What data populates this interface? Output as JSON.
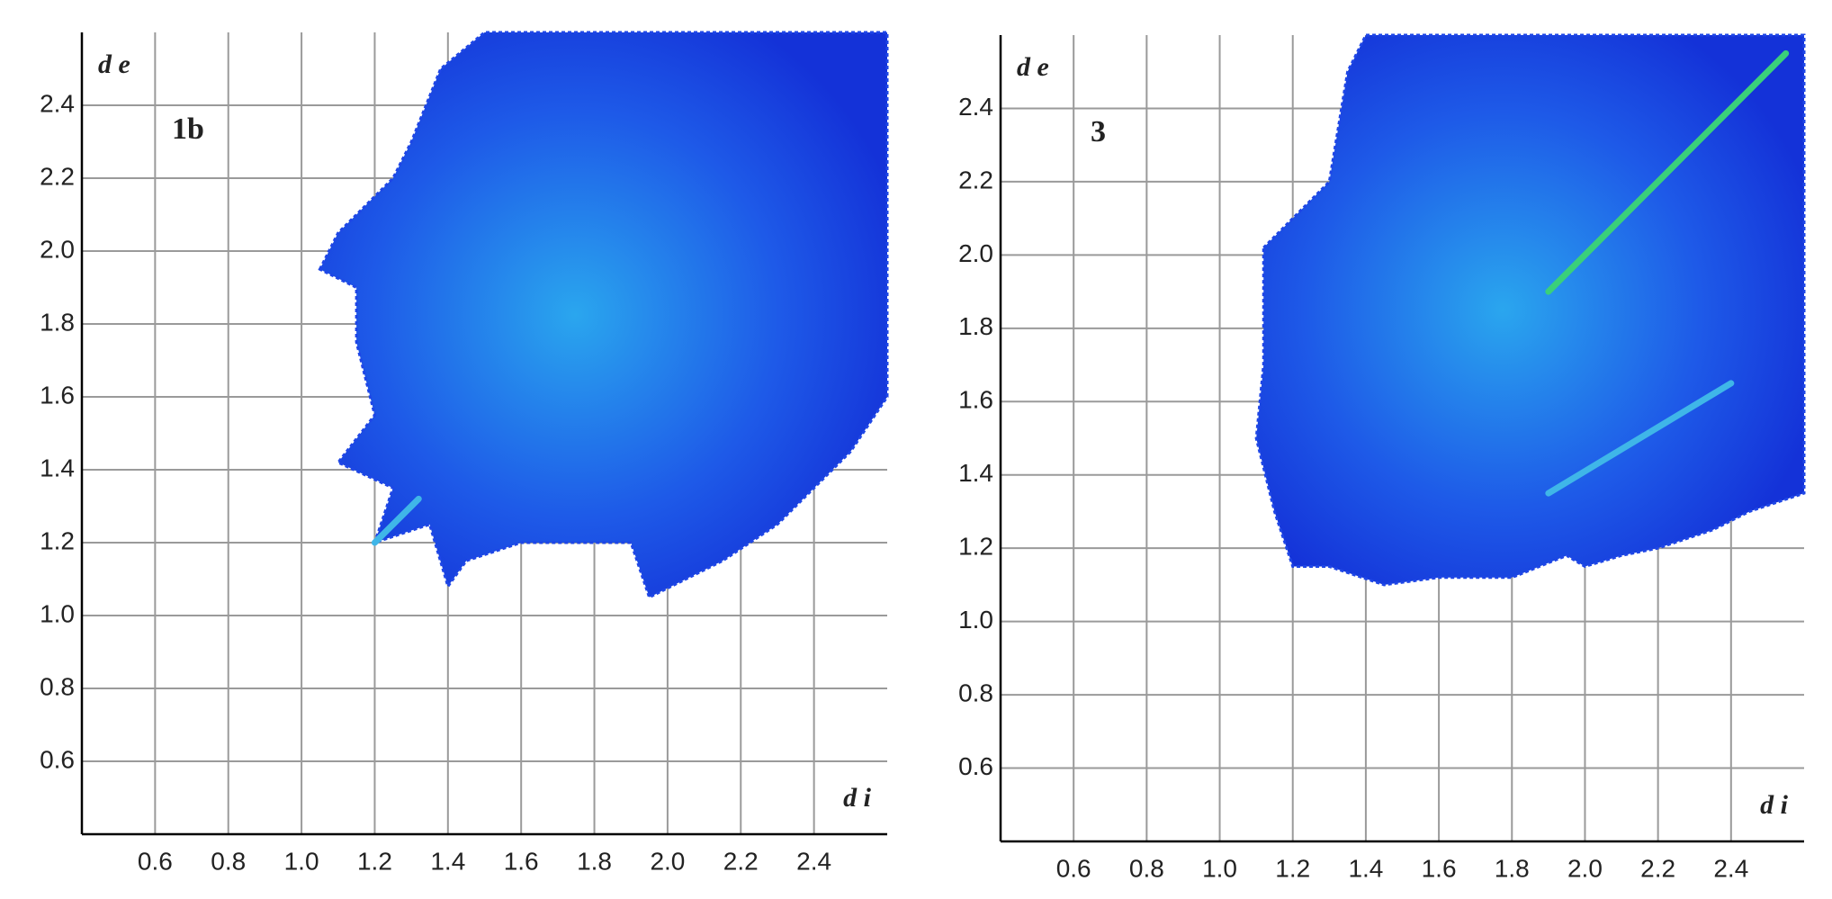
{
  "chart_data": [
    {
      "type": "fingerprint",
      "panel_label": "1b",
      "ylabel": "d e",
      "xlabel": "d i",
      "xlim": [
        0.4,
        2.6
      ],
      "ylim": [
        0.4,
        2.6
      ],
      "xticks": [
        0.6,
        0.8,
        {
          "value": 1.0,
          "label": "1.0"
        },
        1.2,
        1.4,
        1.6,
        1.8,
        {
          "value": 2.0,
          "label": "2.0"
        },
        2.2,
        2.4
      ],
      "yticks": [
        0.6,
        0.8,
        {
          "value": 1.0,
          "label": "1.0"
        },
        1.2,
        1.4,
        1.6,
        1.8,
        {
          "value": 2.0,
          "label": "2.0"
        },
        2.2,
        2.4
      ],
      "grid": true,
      "series": [
        {
          "shape": "region",
          "color": "#1e46e6",
          "x": [
            1.05,
            1.1,
            1.25,
            1.3,
            1.38,
            1.5,
            2.6,
            2.6,
            2.5,
            2.3,
            2.15,
            1.95,
            1.9,
            1.6,
            1.45,
            1.4,
            1.35,
            1.2,
            1.25,
            1.1,
            1.2,
            1.15,
            1.15
          ],
          "values": [
            1.95,
            2.05,
            2.2,
            2.3,
            2.5,
            2.6,
            2.6,
            1.6,
            1.45,
            1.25,
            1.15,
            1.05,
            1.2,
            1.2,
            1.15,
            1.08,
            1.25,
            1.2,
            1.35,
            1.42,
            1.55,
            1.75,
            1.9
          ]
        },
        {
          "shape": "line",
          "color": "#3fb6e8",
          "x": [
            1.2,
            1.32
          ],
          "values": [
            1.2,
            1.32
          ]
        }
      ]
    },
    {
      "type": "fingerprint",
      "panel_label": "3",
      "ylabel": "d e",
      "xlabel": "d i",
      "xlim": [
        0.4,
        2.6
      ],
      "ylim": [
        0.4,
        2.6
      ],
      "xticks": [
        0.6,
        0.8,
        {
          "value": 1.0,
          "label": "1.0"
        },
        1.2,
        1.4,
        1.6,
        1.8,
        {
          "value": 2.0,
          "label": "2.0"
        },
        2.2,
        2.4
      ],
      "yticks": [
        0.6,
        0.8,
        {
          "value": 1.0,
          "label": "1.0"
        },
        1.2,
        1.4,
        1.6,
        1.8,
        {
          "value": 2.0,
          "label": "2.0"
        },
        2.2,
        2.4
      ],
      "grid": true,
      "series": [
        {
          "shape": "region",
          "color": "#1e46e6",
          "x": [
            1.12,
            1.3,
            1.35,
            1.4,
            2.6,
            2.6,
            2.45,
            2.35,
            2.2,
            2.1,
            2.0,
            1.95,
            1.8,
            1.6,
            1.45,
            1.3,
            1.2,
            1.15,
            1.1,
            1.12,
            1.12
          ],
          "values": [
            2.02,
            2.2,
            2.5,
            2.6,
            2.6,
            1.35,
            1.3,
            1.25,
            1.2,
            1.18,
            1.15,
            1.18,
            1.12,
            1.12,
            1.1,
            1.15,
            1.15,
            1.3,
            1.5,
            1.7,
            1.9
          ]
        },
        {
          "shape": "line",
          "color": "#3ad07a",
          "x": [
            1.9,
            2.55
          ],
          "values": [
            1.9,
            2.55
          ]
        },
        {
          "shape": "line",
          "color": "#3fb6e8",
          "x": [
            1.9,
            2.4
          ],
          "values": [
            1.35,
            1.65
          ]
        }
      ]
    }
  ]
}
